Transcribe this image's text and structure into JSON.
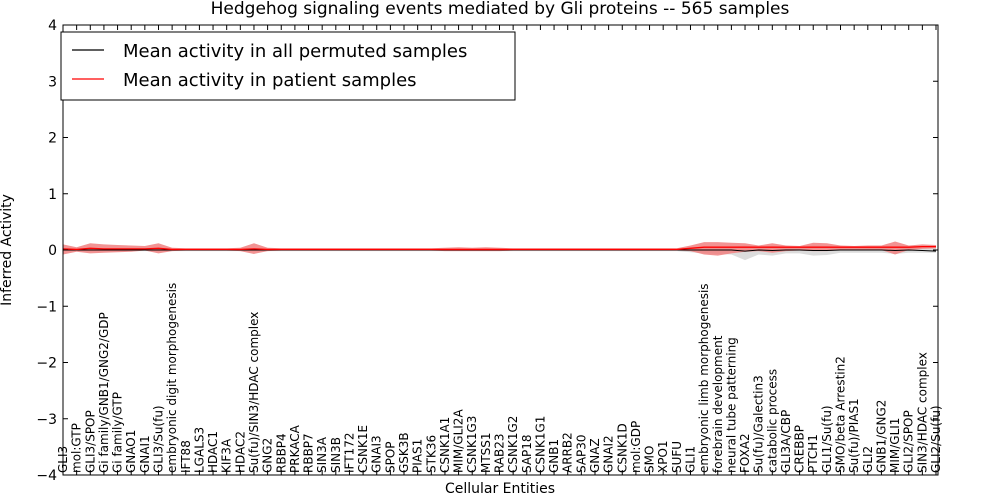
{
  "chart_data": {
    "type": "line",
    "title": "Hedgehog signaling events mediated by Gli proteins -- 565 samples",
    "xlabel": "Cellular Entities",
    "ylabel": "Inferred Activity",
    "ylim": [
      -4,
      4
    ],
    "yticks": [
      "4",
      "3",
      "2",
      "1",
      "0",
      "−1",
      "−2",
      "−3",
      "−4"
    ],
    "legend": {
      "placement": "top-left",
      "entries": [
        "Mean activity in all permuted samples",
        "Mean activity in patient samples"
      ]
    },
    "categories": [
      "GLI3",
      "mol:GTP",
      "GLI3/SPOP",
      "Gi family/GNB1/GNG2/GDP",
      "Gi family/GTP",
      "GNAO1",
      "GNAI1",
      "GLI3/Su(fu)",
      "embryonic digit morphogenesis",
      "IFT88",
      "LGALS3",
      "HDAC1",
      "KIF3A",
      "HDAC2",
      "Su(fu)/SIN3/HDAC complex",
      "GNG2",
      "RBBP4",
      "PRKACA",
      "RBBP7",
      "SIN3A",
      "SIN3B",
      "IFT172",
      "CSNK1E",
      "GNAI3",
      "SPOP",
      "GSK3B",
      "PIAS1",
      "STK36",
      "CSNK1A1",
      "MIM/GLI2A",
      "CSNK1G3",
      "MTSS1",
      "RAB23",
      "CSNK1G2",
      "SAP18",
      "CSNK1G1",
      "GNB1",
      "ARRB2",
      "SAP30",
      "GNAZ",
      "GNAI2",
      "CSNK1D",
      "mol:GDP",
      "SMO",
      "XPO1",
      "SUFU",
      "GLI1",
      "embryonic limb morphogenesis",
      "forebrain development",
      "neural tube patterning",
      "FOXA2",
      "Su(fu)/Galectin3",
      "catabolic process",
      "GLI3A/CBP",
      "CREBBP",
      "PTCH1",
      "GLI1/Su(fu)",
      "SMO/beta Arrestin2",
      "Su(fu)/PIAS1",
      "GLI2",
      "GNB1/GNG2",
      "MIM/GLI1",
      "GLI2/SPOP",
      "SIN3/HDAC complex",
      "GLI2/Su(fu)"
    ],
    "series": [
      {
        "name": "Mean activity in all permuted samples",
        "color": "#000000",
        "values": [
          0,
          0,
          0,
          0,
          0,
          0,
          0,
          0,
          0,
          0,
          0,
          0,
          0,
          0,
          0,
          0,
          0,
          0,
          0,
          0,
          0,
          0,
          0,
          0,
          0,
          0,
          0,
          0,
          0,
          0,
          0,
          0,
          0,
          0,
          0,
          0,
          0,
          0,
          0,
          0,
          0,
          0,
          0,
          0,
          0,
          0,
          0,
          0,
          0,
          0,
          -0.02,
          0,
          -0.01,
          0,
          0,
          -0.01,
          -0.01,
          0,
          0,
          0,
          0,
          -0.01,
          0,
          -0.01,
          -0.02
        ],
        "band_upper": [
          0.02,
          0.02,
          0.02,
          0.02,
          0.02,
          0.02,
          0.02,
          0.02,
          0.02,
          0.02,
          0.02,
          0.02,
          0.02,
          0.02,
          0.02,
          0.02,
          0.02,
          0.02,
          0.02,
          0.02,
          0.02,
          0.02,
          0.02,
          0.02,
          0.02,
          0.02,
          0.02,
          0.02,
          0.02,
          0.02,
          0.02,
          0.02,
          0.02,
          0.02,
          0.02,
          0.02,
          0.02,
          0.02,
          0.02,
          0.02,
          0.02,
          0.02,
          0.02,
          0.02,
          0.02,
          0.02,
          0.03,
          0.05,
          0.05,
          0.06,
          0.08,
          0.06,
          0.07,
          0.05,
          0.05,
          0.08,
          0.07,
          0.05,
          0.05,
          0.05,
          0.05,
          0.06,
          0.05,
          0.05,
          0.05
        ],
        "band_lower": [
          -0.02,
          -0.02,
          -0.02,
          -0.02,
          -0.02,
          -0.02,
          -0.02,
          -0.02,
          -0.02,
          -0.02,
          -0.02,
          -0.02,
          -0.02,
          -0.02,
          -0.02,
          -0.02,
          -0.02,
          -0.02,
          -0.02,
          -0.02,
          -0.02,
          -0.02,
          -0.02,
          -0.02,
          -0.02,
          -0.02,
          -0.02,
          -0.02,
          -0.02,
          -0.02,
          -0.02,
          -0.02,
          -0.02,
          -0.02,
          -0.02,
          -0.02,
          -0.02,
          -0.02,
          -0.02,
          -0.02,
          -0.02,
          -0.02,
          -0.02,
          -0.02,
          -0.02,
          -0.02,
          -0.04,
          -0.06,
          -0.07,
          -0.08,
          -0.18,
          -0.08,
          -0.1,
          -0.06,
          -0.06,
          -0.1,
          -0.09,
          -0.05,
          -0.05,
          -0.05,
          -0.05,
          -0.07,
          -0.05,
          -0.05,
          -0.05
        ]
      },
      {
        "name": "Mean activity in patient samples",
        "color": "#ff0000",
        "values": [
          0.02,
          0.01,
          0.03,
          0.02,
          0.02,
          0.02,
          0.02,
          0.03,
          0.01,
          0.01,
          0.01,
          0.01,
          0.01,
          0.01,
          0.02,
          0.01,
          0.01,
          0.01,
          0.01,
          0.01,
          0.01,
          0.01,
          0.01,
          0.01,
          0.01,
          0.01,
          0.01,
          0.01,
          0.01,
          0.01,
          0.01,
          0.01,
          0.01,
          0.01,
          0.01,
          0.01,
          0.01,
          0.01,
          0.01,
          0.01,
          0.01,
          0.01,
          0.01,
          0.01,
          0.01,
          0.01,
          0.03,
          0.05,
          0.05,
          0.05,
          0.05,
          0.05,
          0.05,
          0.05,
          0.05,
          0.05,
          0.05,
          0.05,
          0.05,
          0.05,
          0.05,
          0.05,
          0.05,
          0.06,
          0.06
        ],
        "band_upper": [
          0.1,
          0.05,
          0.12,
          0.1,
          0.09,
          0.08,
          0.07,
          0.12,
          0.04,
          0.03,
          0.03,
          0.03,
          0.03,
          0.04,
          0.12,
          0.04,
          0.03,
          0.03,
          0.03,
          0.03,
          0.03,
          0.03,
          0.03,
          0.03,
          0.03,
          0.03,
          0.03,
          0.03,
          0.04,
          0.05,
          0.04,
          0.05,
          0.04,
          0.03,
          0.03,
          0.03,
          0.03,
          0.03,
          0.03,
          0.03,
          0.03,
          0.03,
          0.03,
          0.03,
          0.03,
          0.03,
          0.08,
          0.14,
          0.14,
          0.13,
          0.12,
          0.08,
          0.12,
          0.08,
          0.07,
          0.13,
          0.12,
          0.08,
          0.07,
          0.08,
          0.08,
          0.15,
          0.08,
          0.1,
          0.09
        ],
        "band_lower": [
          -0.08,
          -0.03,
          -0.06,
          -0.05,
          -0.04,
          -0.03,
          -0.01,
          -0.06,
          -0.02,
          -0.01,
          -0.01,
          -0.01,
          -0.01,
          -0.02,
          -0.07,
          -0.02,
          -0.01,
          -0.01,
          -0.01,
          -0.01,
          -0.01,
          -0.01,
          -0.01,
          -0.01,
          -0.01,
          -0.01,
          -0.01,
          -0.01,
          -0.02,
          -0.02,
          -0.02,
          -0.02,
          -0.02,
          -0.01,
          -0.01,
          -0.01,
          -0.01,
          -0.01,
          -0.01,
          -0.01,
          -0.01,
          -0.01,
          -0.01,
          -0.01,
          -0.01,
          -0.01,
          -0.02,
          -0.08,
          -0.1,
          -0.06,
          -0.03,
          -0.02,
          -0.05,
          -0.02,
          -0.01,
          -0.02,
          -0.02,
          0,
          0,
          0,
          0,
          -0.08,
          0,
          0.02,
          0.03
        ]
      }
    ]
  }
}
